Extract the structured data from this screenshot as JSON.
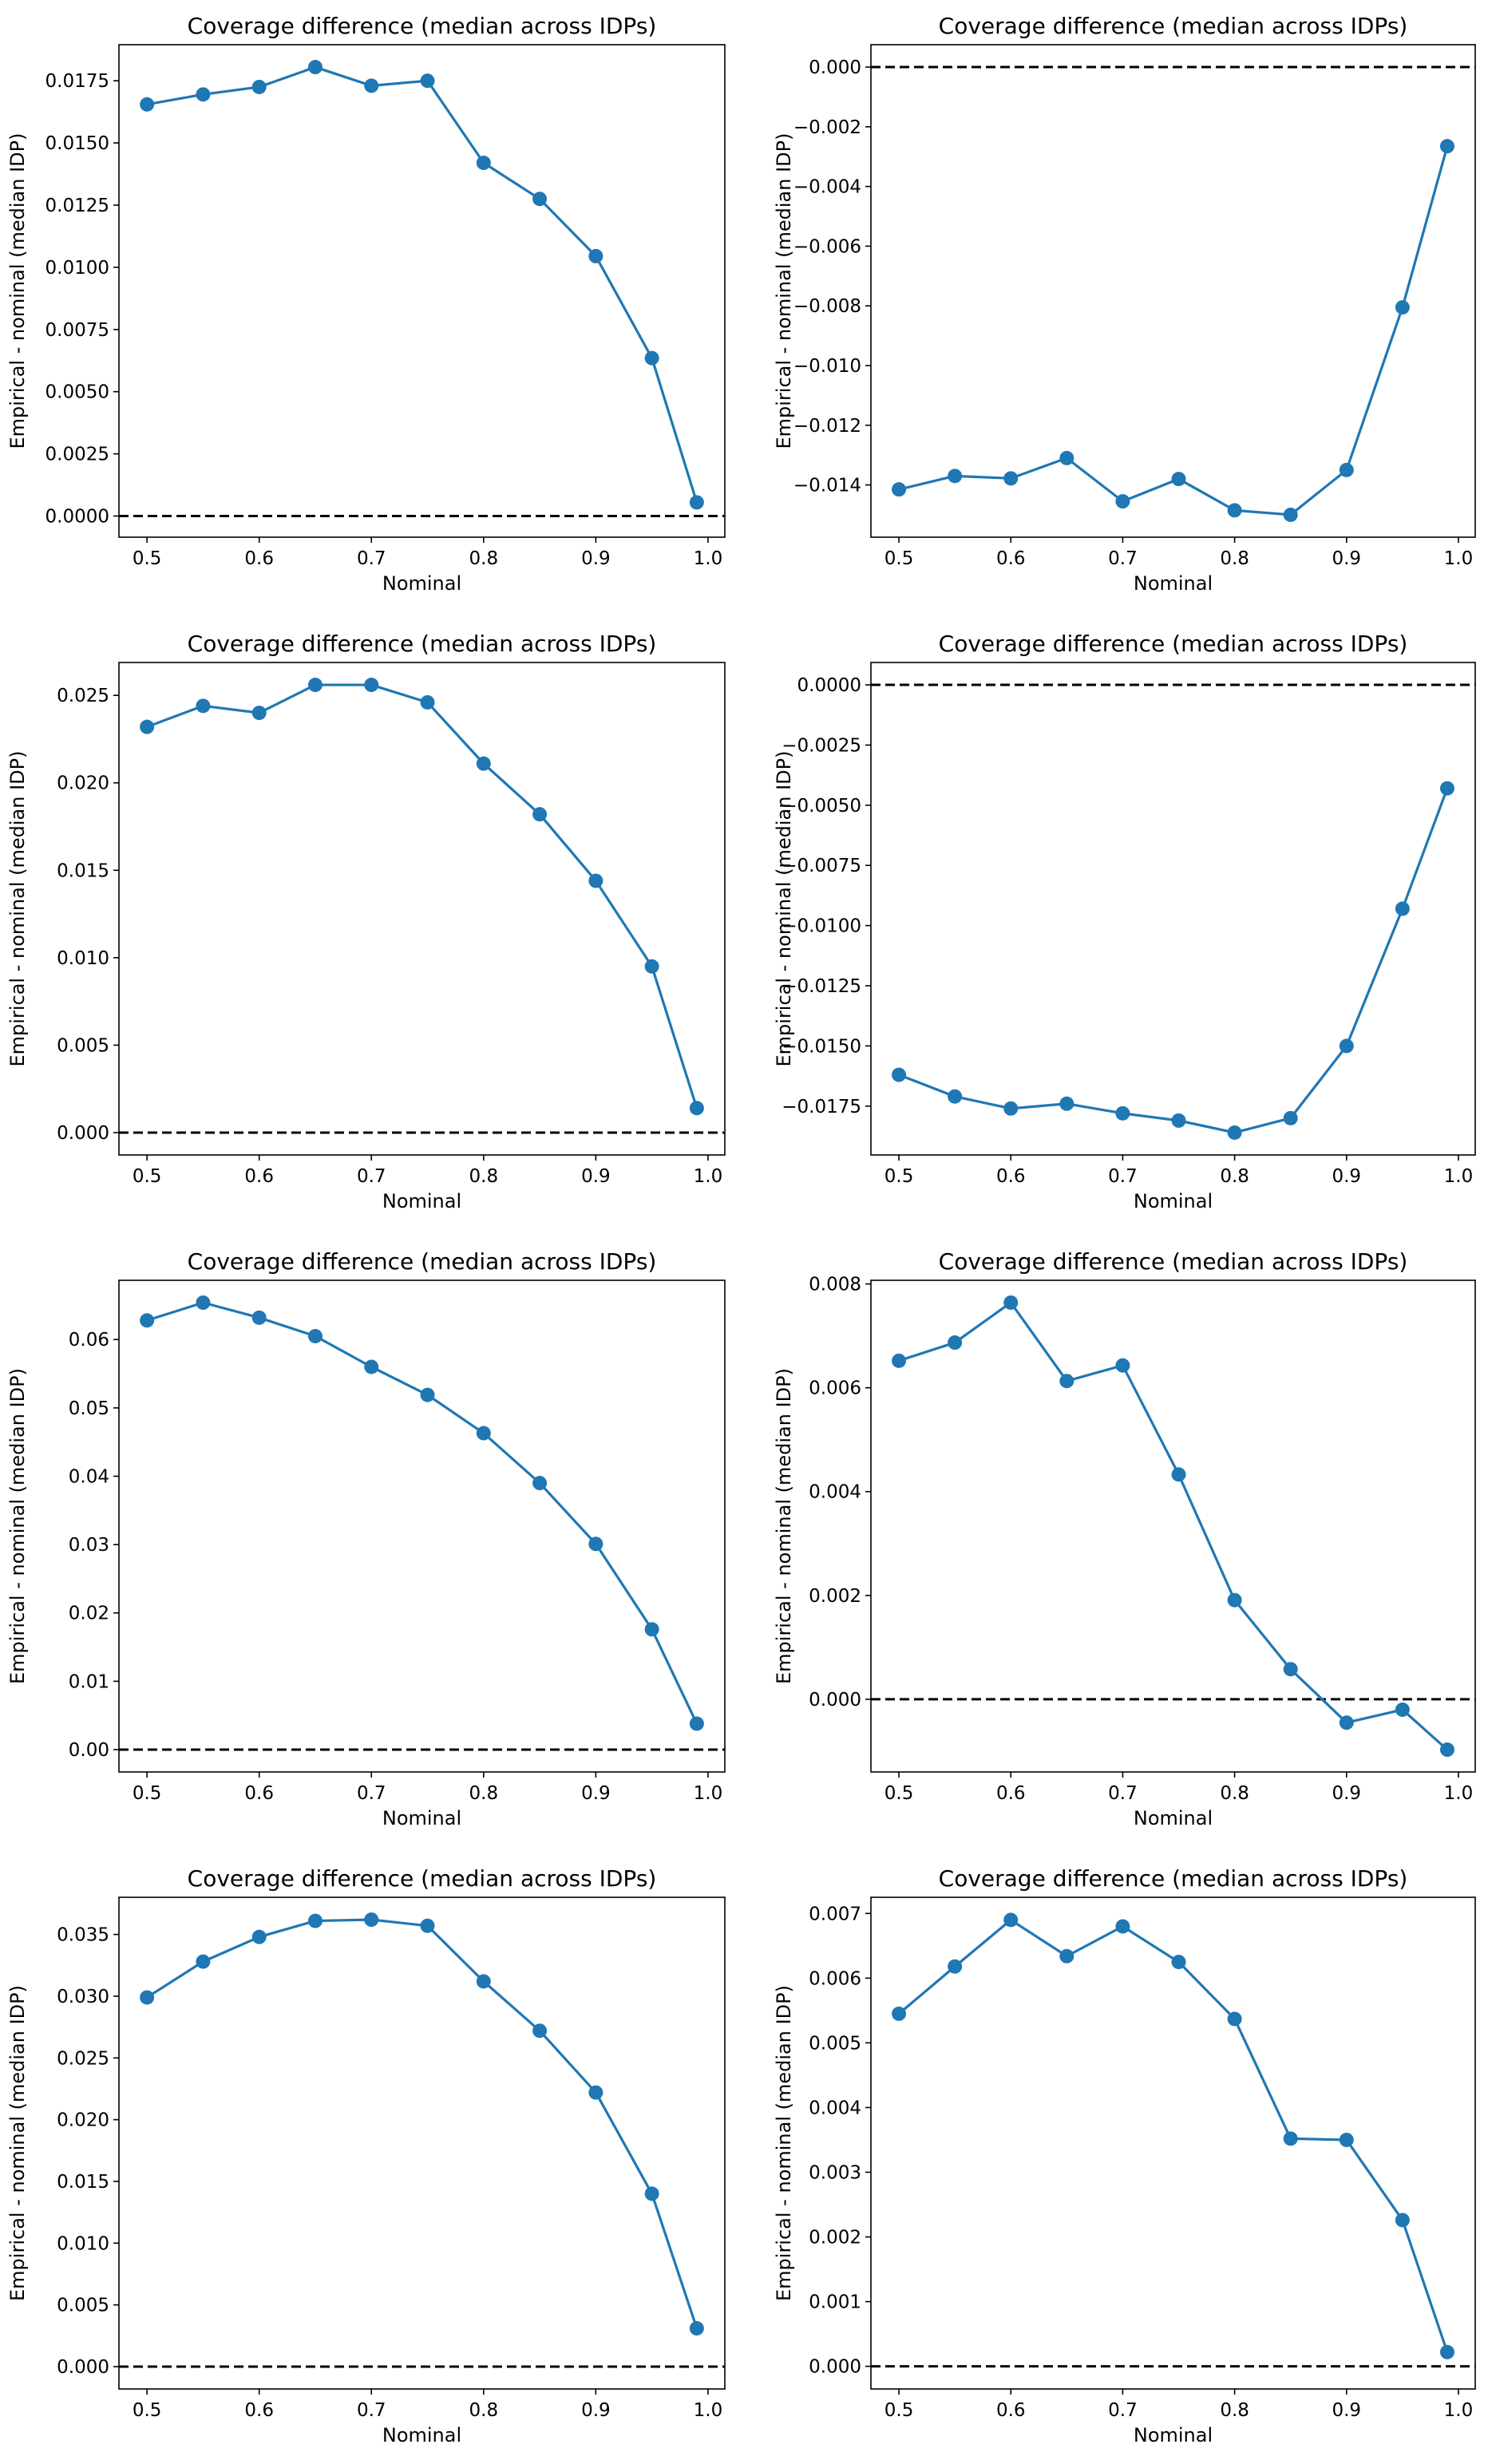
{
  "figure": {
    "accent": "#1f77b4"
  },
  "chart_data": [
    {
      "type": "line",
      "title": "Coverage difference (median across IDPs)",
      "xlabel": "Nominal",
      "ylabel": "Empirical - nominal (median IDP)",
      "x": [
        0.5,
        0.55,
        0.6,
        0.65,
        0.7,
        0.75,
        0.8,
        0.85,
        0.9,
        0.95,
        0.99
      ],
      "values": [
        0.01655,
        0.01695,
        0.01725,
        0.01805,
        0.0173,
        0.0175,
        0.0142,
        0.01275,
        0.01045,
        0.00635,
        0.00055
      ],
      "xlim": [
        0.475,
        1.015
      ],
      "ylim": [
        -0.00085,
        0.01895
      ],
      "xticks": [
        0.5,
        0.6,
        0.7,
        0.8,
        0.9,
        1.0
      ],
      "xtick_labels": [
        "0.5",
        "0.6",
        "0.7",
        "0.8",
        "0.9",
        "1.0"
      ],
      "yticks": [
        0,
        0.0025,
        0.005,
        0.0075,
        0.01,
        0.0125,
        0.015,
        0.0175
      ],
      "ytick_labels": [
        "0.0000",
        "0.0025",
        "0.0050",
        "0.0075",
        "0.0100",
        "0.0125",
        "0.0150",
        "0.0175"
      ],
      "reference_line": 0
    },
    {
      "type": "line",
      "title": "Coverage difference (median across IDPs)",
      "xlabel": "Nominal",
      "ylabel": "Empirical - nominal (median IDP)",
      "x": [
        0.5,
        0.55,
        0.6,
        0.65,
        0.7,
        0.75,
        0.8,
        0.85,
        0.9,
        0.95,
        0.99
      ],
      "values": [
        -0.01415,
        -0.0137,
        -0.01378,
        -0.0131,
        -0.01455,
        -0.0138,
        -0.01485,
        -0.015,
        -0.0135,
        -0.00805,
        -0.00265
      ],
      "xlim": [
        0.475,
        1.015
      ],
      "ylim": [
        -0.01575,
        0.00075
      ],
      "xticks": [
        0.5,
        0.6,
        0.7,
        0.8,
        0.9,
        1.0
      ],
      "xtick_labels": [
        "0.5",
        "0.6",
        "0.7",
        "0.8",
        "0.9",
        "1.0"
      ],
      "yticks": [
        -0.014,
        -0.012,
        -0.01,
        -0.008,
        -0.006,
        -0.004,
        -0.002,
        0
      ],
      "ytick_labels": [
        "−0.014",
        "−0.012",
        "−0.010",
        "−0.008",
        "−0.006",
        "−0.004",
        "−0.002",
        "0.000"
      ],
      "reference_line": 0
    },
    {
      "type": "line",
      "title": "Coverage difference (median across IDPs)",
      "xlabel": "Nominal",
      "ylabel": "Empirical - nominal (median IDP)",
      "x": [
        0.5,
        0.55,
        0.6,
        0.65,
        0.7,
        0.75,
        0.8,
        0.85,
        0.9,
        0.95,
        0.99
      ],
      "values": [
        0.0232,
        0.0244,
        0.024,
        0.0256,
        0.0256,
        0.0246,
        0.0211,
        0.0182,
        0.0144,
        0.0095,
        0.0014
      ],
      "xlim": [
        0.475,
        1.015
      ],
      "ylim": [
        -0.00128,
        0.02688
      ],
      "xticks": [
        0.5,
        0.6,
        0.7,
        0.8,
        0.9,
        1.0
      ],
      "xtick_labels": [
        "0.5",
        "0.6",
        "0.7",
        "0.8",
        "0.9",
        "1.0"
      ],
      "yticks": [
        0,
        0.005,
        0.01,
        0.015,
        0.02,
        0.025
      ],
      "ytick_labels": [
        "0.000",
        "0.005",
        "0.010",
        "0.015",
        "0.020",
        "0.025"
      ],
      "reference_line": 0
    },
    {
      "type": "line",
      "title": "Coverage difference (median across IDPs)",
      "xlabel": "Nominal",
      "ylabel": "Empirical - nominal (median IDP)",
      "x": [
        0.5,
        0.55,
        0.6,
        0.65,
        0.7,
        0.75,
        0.8,
        0.85,
        0.9,
        0.95,
        0.99
      ],
      "values": [
        -0.0162,
        -0.0171,
        -0.0176,
        -0.0174,
        -0.0178,
        -0.0181,
        -0.0186,
        -0.018,
        -0.015,
        -0.0093,
        -0.0043
      ],
      "xlim": [
        0.475,
        1.015
      ],
      "ylim": [
        -0.01953,
        0.00093
      ],
      "xticks": [
        0.5,
        0.6,
        0.7,
        0.8,
        0.9,
        1.0
      ],
      "xtick_labels": [
        "0.5",
        "0.6",
        "0.7",
        "0.8",
        "0.9",
        "1.0"
      ],
      "yticks": [
        -0.0175,
        -0.015,
        -0.0125,
        -0.01,
        -0.0075,
        -0.005,
        -0.0025,
        0
      ],
      "ytick_labels": [
        "−0.0175",
        "−0.0150",
        "−0.0125",
        "−0.0100",
        "−0.0075",
        "−0.0050",
        "−0.0025",
        "0.0000"
      ],
      "reference_line": 0
    },
    {
      "type": "line",
      "title": "Coverage difference (median across IDPs)",
      "xlabel": "Nominal",
      "ylabel": "Empirical - nominal (median IDP)",
      "x": [
        0.5,
        0.55,
        0.6,
        0.65,
        0.7,
        0.75,
        0.8,
        0.85,
        0.9,
        0.95,
        0.99
      ],
      "values": [
        0.0628,
        0.0654,
        0.0632,
        0.0605,
        0.056,
        0.0519,
        0.0463,
        0.039,
        0.0301,
        0.0176,
        0.0038
      ],
      "xlim": [
        0.475,
        1.015
      ],
      "ylim": [
        -0.00327,
        0.06867
      ],
      "xticks": [
        0.5,
        0.6,
        0.7,
        0.8,
        0.9,
        1.0
      ],
      "xtick_labels": [
        "0.5",
        "0.6",
        "0.7",
        "0.8",
        "0.9",
        "1.0"
      ],
      "yticks": [
        0,
        0.01,
        0.02,
        0.03,
        0.04,
        0.05,
        0.06
      ],
      "ytick_labels": [
        "0.00",
        "0.01",
        "0.02",
        "0.03",
        "0.04",
        "0.05",
        "0.06"
      ],
      "reference_line": 0
    },
    {
      "type": "line",
      "title": "Coverage difference (median across IDPs)",
      "xlabel": "Nominal",
      "ylabel": "Empirical - nominal (median IDP)",
      "x": [
        0.5,
        0.55,
        0.6,
        0.65,
        0.7,
        0.75,
        0.8,
        0.85,
        0.9,
        0.95,
        0.99
      ],
      "values": [
        0.00652,
        0.00687,
        0.00764,
        0.00613,
        0.00643,
        0.00433,
        0.00191,
        0.00058,
        -0.00045,
        -0.0002,
        -0.00097
      ],
      "xlim": [
        0.475,
        1.015
      ],
      "ylim": [
        -0.0014,
        0.00807
      ],
      "xticks": [
        0.5,
        0.6,
        0.7,
        0.8,
        0.9,
        1.0
      ],
      "xtick_labels": [
        "0.5",
        "0.6",
        "0.7",
        "0.8",
        "0.9",
        "1.0"
      ],
      "yticks": [
        0,
        0.002,
        0.004,
        0.006,
        0.008
      ],
      "ytick_labels": [
        "0.000",
        "0.002",
        "0.004",
        "0.006",
        "0.008"
      ],
      "reference_line": 0
    },
    {
      "type": "line",
      "title": "Coverage difference (median across IDPs)",
      "xlabel": "Nominal",
      "ylabel": "Empirical - nominal (median IDP)",
      "x": [
        0.5,
        0.55,
        0.6,
        0.65,
        0.7,
        0.75,
        0.8,
        0.85,
        0.9,
        0.95,
        0.99
      ],
      "values": [
        0.0299,
        0.0328,
        0.0348,
        0.0361,
        0.0362,
        0.0357,
        0.0312,
        0.0272,
        0.0222,
        0.014,
        0.0031
      ],
      "xlim": [
        0.475,
        1.015
      ],
      "ylim": [
        -0.00181,
        0.03801
      ],
      "xticks": [
        0.5,
        0.6,
        0.7,
        0.8,
        0.9,
        1.0
      ],
      "xtick_labels": [
        "0.5",
        "0.6",
        "0.7",
        "0.8",
        "0.9",
        "1.0"
      ],
      "yticks": [
        0,
        0.005,
        0.01,
        0.015,
        0.02,
        0.025,
        0.03,
        0.035
      ],
      "ytick_labels": [
        "0.000",
        "0.005",
        "0.010",
        "0.015",
        "0.020",
        "0.025",
        "0.030",
        "0.035"
      ],
      "reference_line": 0
    },
    {
      "type": "line",
      "title": "Coverage difference (median across IDPs)",
      "xlabel": "Nominal",
      "ylabel": "Empirical - nominal (median IDP)",
      "x": [
        0.5,
        0.55,
        0.6,
        0.65,
        0.7,
        0.75,
        0.8,
        0.85,
        0.9,
        0.95,
        0.99
      ],
      "values": [
        0.00545,
        0.00618,
        0.0069,
        0.00634,
        0.0068,
        0.00625,
        0.00537,
        0.00352,
        0.0035,
        0.00226,
        0.00022
      ],
      "xlim": [
        0.475,
        1.015
      ],
      "ylim": [
        -0.00035,
        0.00725
      ],
      "xticks": [
        0.5,
        0.6,
        0.7,
        0.8,
        0.9,
        1.0
      ],
      "xtick_labels": [
        "0.5",
        "0.6",
        "0.7",
        "0.8",
        "0.9",
        "1.0"
      ],
      "yticks": [
        0,
        0.001,
        0.002,
        0.003,
        0.004,
        0.005,
        0.006,
        0.007
      ],
      "ytick_labels": [
        "0.000",
        "0.001",
        "0.002",
        "0.003",
        "0.004",
        "0.005",
        "0.006",
        "0.007"
      ],
      "reference_line": 0
    }
  ]
}
